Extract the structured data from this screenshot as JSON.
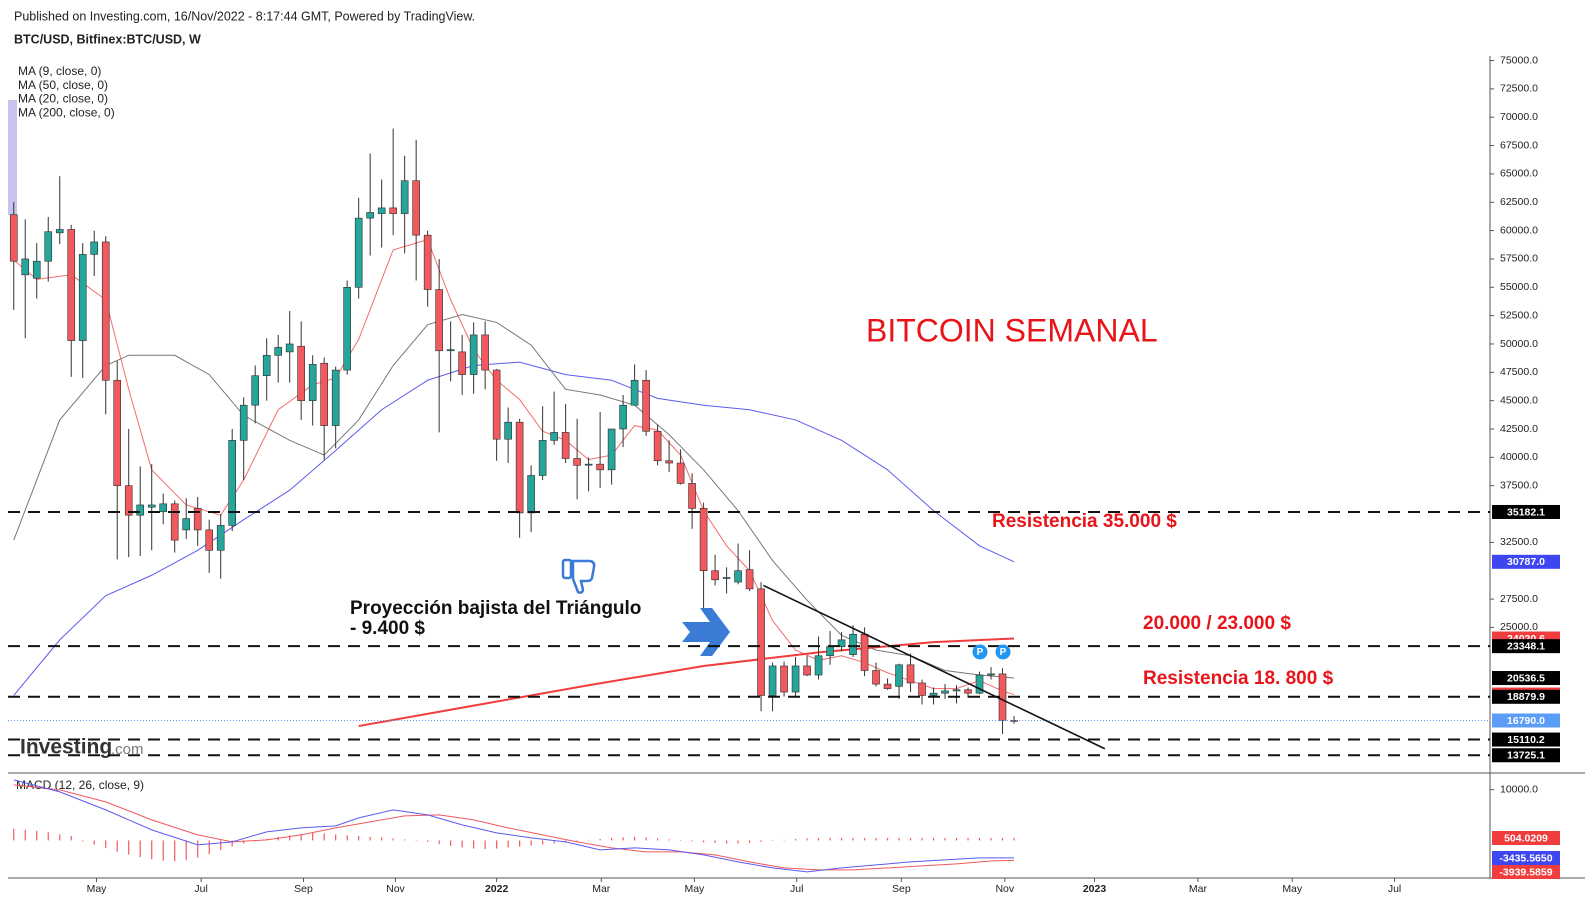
{
  "header": {
    "published": "Published on Investing.com, 16/Nov/2022 - 8:17:44 GMT, Powered by TradingView.",
    "symbol": "BTC/USD, Bitfinex:BTC/USD, W"
  },
  "logo": {
    "name": "Investing",
    "suffix": ".com"
  },
  "chart_data": {
    "type": "candlestick",
    "title": "BITCOIN SEMANAL",
    "x": [
      0,
      1,
      2,
      3,
      4,
      5,
      6,
      7,
      8,
      9,
      10,
      11,
      12,
      13,
      14,
      15,
      16,
      17,
      18,
      19,
      20,
      21,
      22,
      23,
      24,
      25,
      26,
      27,
      28,
      29,
      30,
      31,
      32,
      33,
      34,
      35,
      36,
      37,
      38,
      39,
      40,
      41,
      42,
      43,
      44,
      45,
      46,
      47,
      48,
      49,
      50,
      51,
      52,
      53,
      54,
      55,
      56,
      57,
      58,
      59,
      60,
      61,
      62,
      63,
      64,
      65,
      66,
      67,
      68,
      69,
      70,
      71,
      72,
      73,
      74,
      75,
      76,
      77,
      78,
      79,
      80,
      81,
      82,
      83,
      84,
      85,
      86,
      87
    ],
    "open": [
      61400,
      56100,
      55800,
      57300,
      59800,
      60100,
      50300,
      57900,
      59000,
      46800,
      37500,
      34900,
      35600,
      35200,
      35900,
      33600,
      35500,
      33600,
      31800,
      34000,
      41500,
      44600,
      47200,
      49000,
      49300,
      49800,
      45000,
      48300,
      42800,
      47700,
      55000,
      61100,
      61500,
      62000,
      61500,
      64400,
      59600,
      54800,
      49400,
      49300,
      47300,
      50800,
      47700,
      41600,
      43100,
      35100,
      38400,
      41500,
      42200,
      39900,
      39400,
      39400,
      38900,
      42500,
      44600,
      46800,
      42300,
      39700,
      39500,
      37700,
      35500,
      30000,
      29400,
      29000,
      30100,
      28400,
      19000,
      21600,
      19300,
      21600,
      20800,
      22500,
      23300,
      22600,
      24400,
      21200,
      20000,
      19800,
      21700,
      20100,
      19000,
      19200,
      19400,
      19500,
      19200,
      20800,
      20900,
      16800
    ],
    "high": [
      62500,
      61000,
      58900,
      61200,
      64800,
      60500,
      58900,
      60000,
      59500,
      48500,
      42500,
      39200,
      39400,
      36800,
      36200,
      36400,
      36500,
      34500,
      35000,
      42500,
      45300,
      48100,
      50500,
      50800,
      52900,
      52000,
      49000,
      48800,
      48000,
      55600,
      62900,
      66800,
      64500,
      69000,
      66600,
      68000,
      60000,
      57500,
      52000,
      50800,
      51900,
      52000,
      47800,
      44400,
      43400,
      39300,
      44500,
      45800,
      44700,
      43400,
      40000,
      44000,
      42500,
      45500,
      48200,
      47700,
      42900,
      41500,
      40700,
      38600,
      36000,
      31400,
      30300,
      32400,
      31800,
      29000,
      21900,
      22000,
      22400,
      22500,
      24200,
      24700,
      24600,
      25200,
      25000,
      21900,
      20500,
      21800,
      22700,
      20400,
      19700,
      20000,
      19900,
      19700,
      21100,
      21500,
      21400,
      17200
    ],
    "low": [
      53000,
      50500,
      54000,
      55500,
      58800,
      47100,
      47000,
      56000,
      43800,
      31000,
      31200,
      31300,
      31800,
      34100,
      31600,
      32800,
      32200,
      29800,
      29300,
      33500,
      38000,
      43000,
      45000,
      46600,
      46600,
      43300,
      42800,
      39800,
      40800,
      47300,
      54000,
      57800,
      58500,
      59600,
      58000,
      55600,
      53300,
      42200,
      46700,
      45500,
      45600,
      46000,
      39700,
      39500,
      32900,
      33400,
      38000,
      41100,
      39500,
      36300,
      37000,
      37300,
      37600,
      40900,
      44600,
      41900,
      39300,
      38700,
      37600,
      33700,
      26700,
      28700,
      28000,
      28800,
      28200,
      17600,
      17600,
      18900,
      18800,
      20700,
      20400,
      21700,
      22900,
      22400,
      20700,
      19800,
      19500,
      18700,
      19300,
      18200,
      18200,
      18700,
      18300,
      18800,
      19100,
      20400,
      15600,
      16500
    ],
    "close": [
      57300,
      57500,
      57300,
      59900,
      60100,
      50300,
      57900,
      59000,
      46800,
      37500,
      34900,
      35800,
      35800,
      35900,
      32700,
      34600,
      33600,
      31800,
      34000,
      41500,
      44600,
      47200,
      49000,
      49700,
      50000,
      45000,
      48200,
      42800,
      47700,
      55000,
      61100,
      61600,
      62000,
      61500,
      64400,
      59600,
      54800,
      49400,
      49500,
      47300,
      50800,
      47700,
      41600,
      43100,
      35100,
      38400,
      41500,
      42200,
      39900,
      39300,
      39400,
      38900,
      42500,
      44600,
      46800,
      42300,
      39700,
      39500,
      37700,
      35500,
      30000,
      29200,
      29400,
      30000,
      28400,
      19000,
      21600,
      19300,
      21600,
      20800,
      22500,
      23300,
      23900,
      24400,
      21200,
      20000,
      19600,
      21700,
      20100,
      19000,
      19200,
      19400,
      19500,
      19200,
      20800,
      20900,
      16800,
      16790
    ],
    "up_color": "#26a69a",
    "down_color": "#f05a5f",
    "xlim": [
      -0.5,
      128.4
    ],
    "xticks": [
      {
        "value": 7.2,
        "label": "May"
      },
      {
        "value": 16.3,
        "label": "Jul"
      },
      {
        "value": 25.2,
        "label": "Sep"
      },
      {
        "value": 33.2,
        "label": "Nov"
      },
      {
        "value": 42.0,
        "label": "2022"
      },
      {
        "value": 51.1,
        "label": "Mar"
      },
      {
        "value": 59.2,
        "label": "May"
      },
      {
        "value": 68.1,
        "label": "Jul"
      },
      {
        "value": 77.2,
        "label": "Sep"
      },
      {
        "value": 86.2,
        "label": "Nov"
      },
      {
        "value": 94.0,
        "label": "2023"
      },
      {
        "value": 103.0,
        "label": "Mar"
      },
      {
        "value": 111.2,
        "label": "May"
      },
      {
        "value": 120.1,
        "label": "Jul"
      }
    ],
    "ylim": [
      12600,
      75400
    ],
    "yticks": [
      {
        "value": 75000,
        "label": "75000.0"
      },
      {
        "value": 72500,
        "label": "72500.0"
      },
      {
        "value": 70000,
        "label": "70000.0"
      },
      {
        "value": 67500,
        "label": "67500.0"
      },
      {
        "value": 65000,
        "label": "65000.0"
      },
      {
        "value": 62500,
        "label": "62500.0"
      },
      {
        "value": 60000,
        "label": "60000.0"
      },
      {
        "value": 57500,
        "label": "57500.0"
      },
      {
        "value": 55000,
        "label": "55000.0"
      },
      {
        "value": 52500,
        "label": "52500.0"
      },
      {
        "value": 50000,
        "label": "50000.0"
      },
      {
        "value": 47500,
        "label": "47500.0"
      },
      {
        "value": 45000,
        "label": "45000.0"
      },
      {
        "value": 42500,
        "label": "42500.0"
      },
      {
        "value": 40000,
        "label": "40000.0"
      },
      {
        "value": 37500,
        "label": "37500.0"
      },
      {
        "value": 32500,
        "label": "32500.0"
      },
      {
        "value": 27500,
        "label": "27500.0"
      },
      {
        "value": 25000,
        "label": "25000.0"
      }
    ],
    "moving_averages": [
      {
        "name": "MA (9, close, 0)",
        "color": "#f26d6d",
        "width": 1,
        "x": [
          0,
          2,
          5,
          8,
          10,
          12,
          15,
          18,
          20,
          23,
          26,
          28,
          30,
          33,
          36,
          38,
          40,
          42,
          44,
          46,
          48,
          50,
          52,
          54,
          56,
          58,
          60,
          62,
          64,
          66,
          68,
          70,
          72,
          74,
          76,
          78,
          80,
          82,
          84,
          86,
          87
        ],
        "values": [
          57400,
          55700,
          56100,
          53900,
          46000,
          38900,
          35800,
          34900,
          38000,
          44200,
          46400,
          47000,
          50400,
          58300,
          59200,
          53900,
          49500,
          46800,
          45100,
          42300,
          41500,
          39800,
          40200,
          42800,
          42400,
          40200,
          35300,
          32200,
          30000,
          25600,
          23000,
          22100,
          22500,
          21900,
          21000,
          20300,
          19600,
          19600,
          20300,
          19400,
          19078.8
        ],
        "last_label": {
          "value": 19078.8,
          "label_color": "#f03c3c"
        }
      },
      {
        "name": "MA (50, close, 0)",
        "color": "#5b5bf0",
        "width": 1,
        "x": [
          0,
          4,
          8,
          12,
          16,
          20,
          24,
          28,
          32,
          36,
          40,
          44,
          48,
          52,
          56,
          60,
          64,
          68,
          72,
          76,
          80,
          84,
          87
        ],
        "values": [
          19000,
          23900,
          27800,
          29600,
          31800,
          34500,
          37100,
          40600,
          44200,
          46800,
          48100,
          48400,
          47300,
          46800,
          45200,
          44600,
          44200,
          43300,
          41500,
          38900,
          35300,
          32200,
          30787
        ],
        "last_label": {
          "value": 30787,
          "label": "30787.0",
          "label_color": "#3d46f0"
        }
      },
      {
        "name": "MA (20, close, 0)",
        "color": "#777777",
        "width": 1,
        "x": [
          0,
          4,
          8,
          10,
          14,
          17,
          20,
          24,
          27,
          30,
          33,
          36,
          39,
          42,
          45,
          48,
          51,
          54,
          57,
          60,
          63,
          66,
          69,
          72,
          75,
          78,
          81,
          84,
          87
        ],
        "values": [
          32700,
          43300,
          48100,
          49000,
          49000,
          47300,
          43700,
          41500,
          40200,
          43300,
          48100,
          51700,
          52600,
          51900,
          49900,
          46000,
          45500,
          44600,
          42000,
          38900,
          35300,
          30900,
          27400,
          24300,
          23000,
          22500,
          21200,
          20800,
          20536.5
        ],
        "last_label": {
          "value": 20536.5,
          "label_color": "#000000"
        }
      },
      {
        "name": "MA (200, close, 0)",
        "color": "#f03c3c",
        "width": 2,
        "x": [
          30,
          40,
          50,
          60,
          70,
          80,
          87
        ],
        "values": [
          16300,
          18100,
          19900,
          21600,
          22800,
          23700,
          24020.6
        ],
        "last_label": {
          "value": 24020.6,
          "label_color": "#f03c3c"
        }
      }
    ],
    "levels": [
      {
        "value": 35182.1,
        "color": "#000000",
        "line": "dashed"
      },
      {
        "value": 23348.1,
        "color": "#000000",
        "line": "dashed"
      },
      {
        "value": 18879.9,
        "color": "#000000",
        "line": "dashed"
      },
      {
        "value": 16790,
        "label": "16790.0",
        "color": "#5b9cf6",
        "line": "dotted"
      },
      {
        "value": 15110.2,
        "color": "#000000",
        "line": "dashed"
      },
      {
        "value": 13725.1,
        "color": "#000000",
        "line": "dashed"
      }
    ],
    "trendline": {
      "x": [
        65.2,
        94.9
      ],
      "values": [
        28700,
        14300
      ]
    },
    "annotations": [
      "Resistencia 35.000  $",
      "20.000 / 23.000 $",
      "Resistencia  18. 800 $",
      "Proyección bajista del Triángulo",
      "- 9.400 $"
    ],
    "event_markers": [
      "P",
      "P"
    ],
    "macd": {
      "name": "MACD (12, 26, close, 9)",
      "ylim": [
        -7400,
        12300
      ],
      "yticks": [
        {
          "value": 10000,
          "label": "10000.0"
        }
      ],
      "macd_line": {
        "color": "#5b5bf0",
        "x": [
          0,
          4,
          8,
          12,
          16,
          19,
          22,
          25,
          28,
          30,
          33,
          36,
          39,
          42,
          45,
          48,
          51,
          54,
          57,
          60,
          63,
          66,
          69,
          72,
          75,
          78,
          81,
          84,
          87
        ],
        "values": [
          11930,
          9570,
          6020,
          2080,
          -880,
          -280,
          1690,
          2470,
          2870,
          4440,
          6020,
          5030,
          3070,
          1490,
          500,
          -280,
          -1860,
          -1470,
          -1860,
          -2850,
          -4230,
          -5410,
          -6200,
          -5410,
          -4820,
          -4230,
          -3830,
          -3440,
          -3435.565
        ],
        "last_label": {
          "value": -3435.565,
          "label": "-3435.5650",
          "label_color": "#3d46f0"
        }
      },
      "signal_line": {
        "color": "#f05a5f",
        "x": [
          0,
          4,
          8,
          12,
          16,
          19,
          22,
          25,
          28,
          31,
          34,
          37,
          40,
          43,
          46,
          49,
          52,
          55,
          58,
          61,
          64,
          67,
          70,
          73,
          76,
          79,
          82,
          85,
          87
        ],
        "values": [
          10950,
          9960,
          7600,
          4050,
          1100,
          -280,
          110,
          1100,
          2470,
          3660,
          4840,
          5030,
          4050,
          2470,
          1100,
          -280,
          -1470,
          -2260,
          -2260,
          -2850,
          -4230,
          -5410,
          -5800,
          -5800,
          -5410,
          -5020,
          -4620,
          -4040,
          -3939.5859
        ],
        "last_label": {
          "value": -3939.5859,
          "label_color": "#f03c3c"
        }
      },
      "histogram": {
        "color": "#f05a5f",
        "values": [
          2300,
          2100,
          1900,
          1600,
          1200,
          900,
          -200,
          -800,
          -1500,
          -2200,
          -2800,
          -3300,
          -3700,
          -4000,
          -4100,
          -3900,
          -3400,
          -2700,
          -1900,
          -1200,
          -600,
          -200,
          300,
          700,
          1000,
          1300,
          1500,
          1400,
          1200,
          1000,
          900,
          700,
          600,
          400,
          200,
          0,
          -300,
          -700,
          -1100,
          -1400,
          -1600,
          -1700,
          -1600,
          -1400,
          -1200,
          -1000,
          -800,
          -600,
          -400,
          -200,
          100,
          300,
          500,
          600,
          700,
          600,
          400,
          200,
          0,
          -200,
          -400,
          -500,
          -600,
          -600,
          -500,
          -300,
          -100,
          100,
          300,
          400,
          500,
          500,
          500,
          500,
          500,
          500,
          500,
          500,
          500,
          500,
          500,
          500,
          500,
          500,
          500,
          500,
          500,
          504.0209
        ],
        "last_label": {
          "value": 504.0209,
          "label_color": "#f03c3c"
        }
      }
    }
  }
}
